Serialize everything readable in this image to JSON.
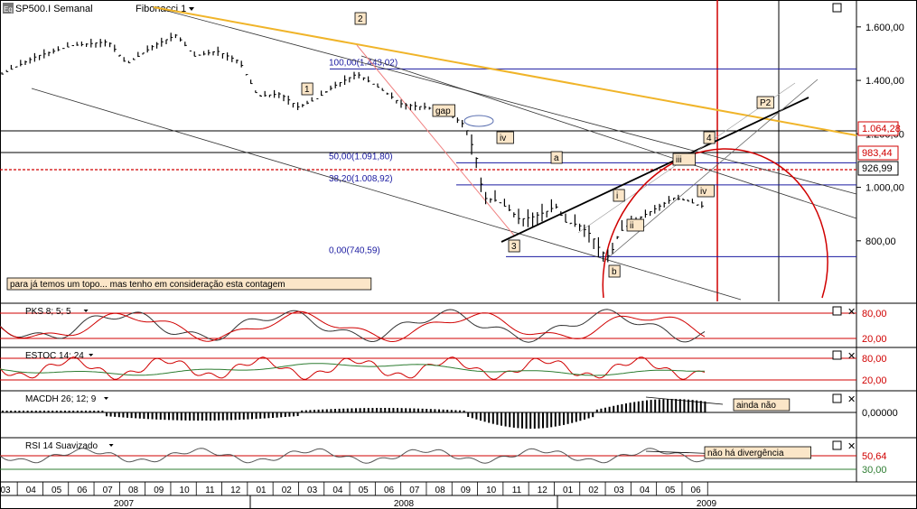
{
  "header": {
    "symbol": "SP500.I Semanal",
    "study": "Fibonacci 1"
  },
  "main_price_chart": {
    "type": "bar",
    "y_ticks": [
      "1.600,00",
      "1.400,00",
      "1.200,00",
      "1.000,00",
      "800,00"
    ],
    "ylim": [
      580,
      1650
    ],
    "price_boxes": [
      "1.064,28",
      "983,44",
      "926,99"
    ],
    "fib_levels": [
      {
        "label": "100,00(1.443,02)",
        "value": 1443.02
      },
      {
        "label": "50,00(1.091,80)",
        "value": 1091.8
      },
      {
        "label": "38,20(1.008,92)",
        "value": 1008.92
      },
      {
        "label": "0,00(740,59)",
        "value": 740.59
      }
    ],
    "wave_labels": [
      "2",
      "1",
      "gap",
      "iv",
      "a",
      "3",
      "b",
      "i",
      "ii",
      "iii",
      "4",
      "iv",
      "P2"
    ],
    "note": "para já temos um topo... mas tenho em consideração esta contagem"
  },
  "indicators": [
    {
      "title": "PKS 8; 5; 5",
      "levels": [
        "80,00",
        "20,00"
      ]
    },
    {
      "title": "ESTOC 14; 24",
      "levels": [
        "80,00",
        "20,00"
      ]
    },
    {
      "title": "MACDH 26; 12; 9",
      "levels": [
        "0,00000"
      ],
      "note": "ainda não"
    },
    {
      "title": "RSI 14 Suavizado",
      "levels": [
        "50,64",
        "30,00"
      ],
      "note": "não há divergência"
    }
  ],
  "x_axis": {
    "months": [
      "03",
      "04",
      "05",
      "06",
      "07",
      "08",
      "09",
      "10",
      "11",
      "12",
      "01",
      "02",
      "03",
      "04",
      "05",
      "06",
      "07",
      "08",
      "09",
      "10",
      "11",
      "12",
      "01",
      "02",
      "03",
      "04",
      "05",
      "06"
    ],
    "years": [
      "2007",
      "2008",
      "2009"
    ]
  },
  "colors": {
    "fib_line": "#1a1aa0",
    "trend_yellow": "#f0b429",
    "red": "#d00000",
    "label_box": "#fbe6c8"
  }
}
